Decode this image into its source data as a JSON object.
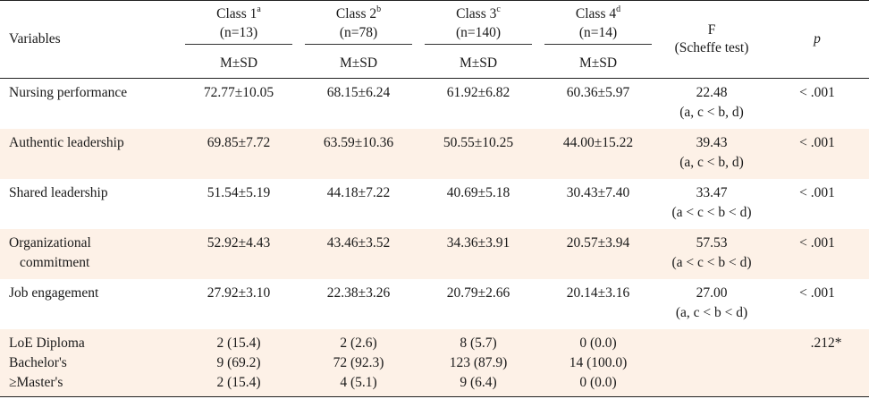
{
  "header": {
    "variables": "Variables",
    "classes": [
      {
        "label": "Class 1",
        "sup": "a",
        "n": "(n=13)",
        "stat": "M±SD"
      },
      {
        "label": "Class 2",
        "sup": "b",
        "n": "(n=78)",
        "stat": "M±SD"
      },
      {
        "label": "Class 3",
        "sup": "c",
        "n": "(n=140)",
        "stat": "M±SD"
      },
      {
        "label": "Class 4",
        "sup": "d",
        "n": "(n=14)",
        "stat": "M±SD"
      }
    ],
    "f_line1": "F",
    "f_line2": "(Scheffe  test)",
    "p": "p"
  },
  "rows": [
    {
      "var1": "Nursing performance",
      "var2": "",
      "c1": "72.77±10.05",
      "c2": "68.15±6.24",
      "c3": "61.92±6.82",
      "c4": "60.36±5.97",
      "f": "22.48",
      "post": "(a, c < b, d)",
      "p": "< .001"
    },
    {
      "var1": "Authentic leadership",
      "var2": "",
      "c1": "69.85±7.72",
      "c2": "63.59±10.36",
      "c3": "50.55±10.25",
      "c4": "44.00±15.22",
      "f": "39.43",
      "post": "(a, c < b, d)",
      "p": "< .001"
    },
    {
      "var1": "Shared leadership",
      "var2": "",
      "c1": "51.54±5.19",
      "c2": "44.18±7.22",
      "c3": "40.69±5.18",
      "c4": "30.43±7.40",
      "f": "33.47",
      "post": "(a < c < b < d)",
      "p": "< .001"
    },
    {
      "var1": "Organizational",
      "var2": "commitment",
      "c1": "52.92±4.43",
      "c2": "43.46±3.52",
      "c3": "34.36±3.91",
      "c4": "20.57±3.94",
      "f": "57.53",
      "post": "(a < c < b < d)",
      "p": "< .001"
    },
    {
      "var1": "Job engagement",
      "var2": "",
      "c1": "27.92±3.10",
      "c2": "22.38±3.26",
      "c3": "20.79±2.66",
      "c4": "20.14±3.16",
      "f": "27.00",
      "post": "(a, c < b < d)",
      "p": "< .001"
    }
  ],
  "education": {
    "labels": [
      "LoE Diploma",
      "Bachelor's",
      "≥Master's"
    ],
    "c1": [
      "2 (15.4)",
      "9 (69.2)",
      "2 (15.4)"
    ],
    "c2": [
      "2 (2.6)",
      "72 (92.3)",
      "4 (5.1)"
    ],
    "c3": [
      "8 (5.7)",
      "123 (87.9)",
      "9 (6.4)"
    ],
    "c4": [
      "0 (0.0)",
      "14 (100.0)",
      "0 (0.0)"
    ],
    "p": ".212*"
  }
}
